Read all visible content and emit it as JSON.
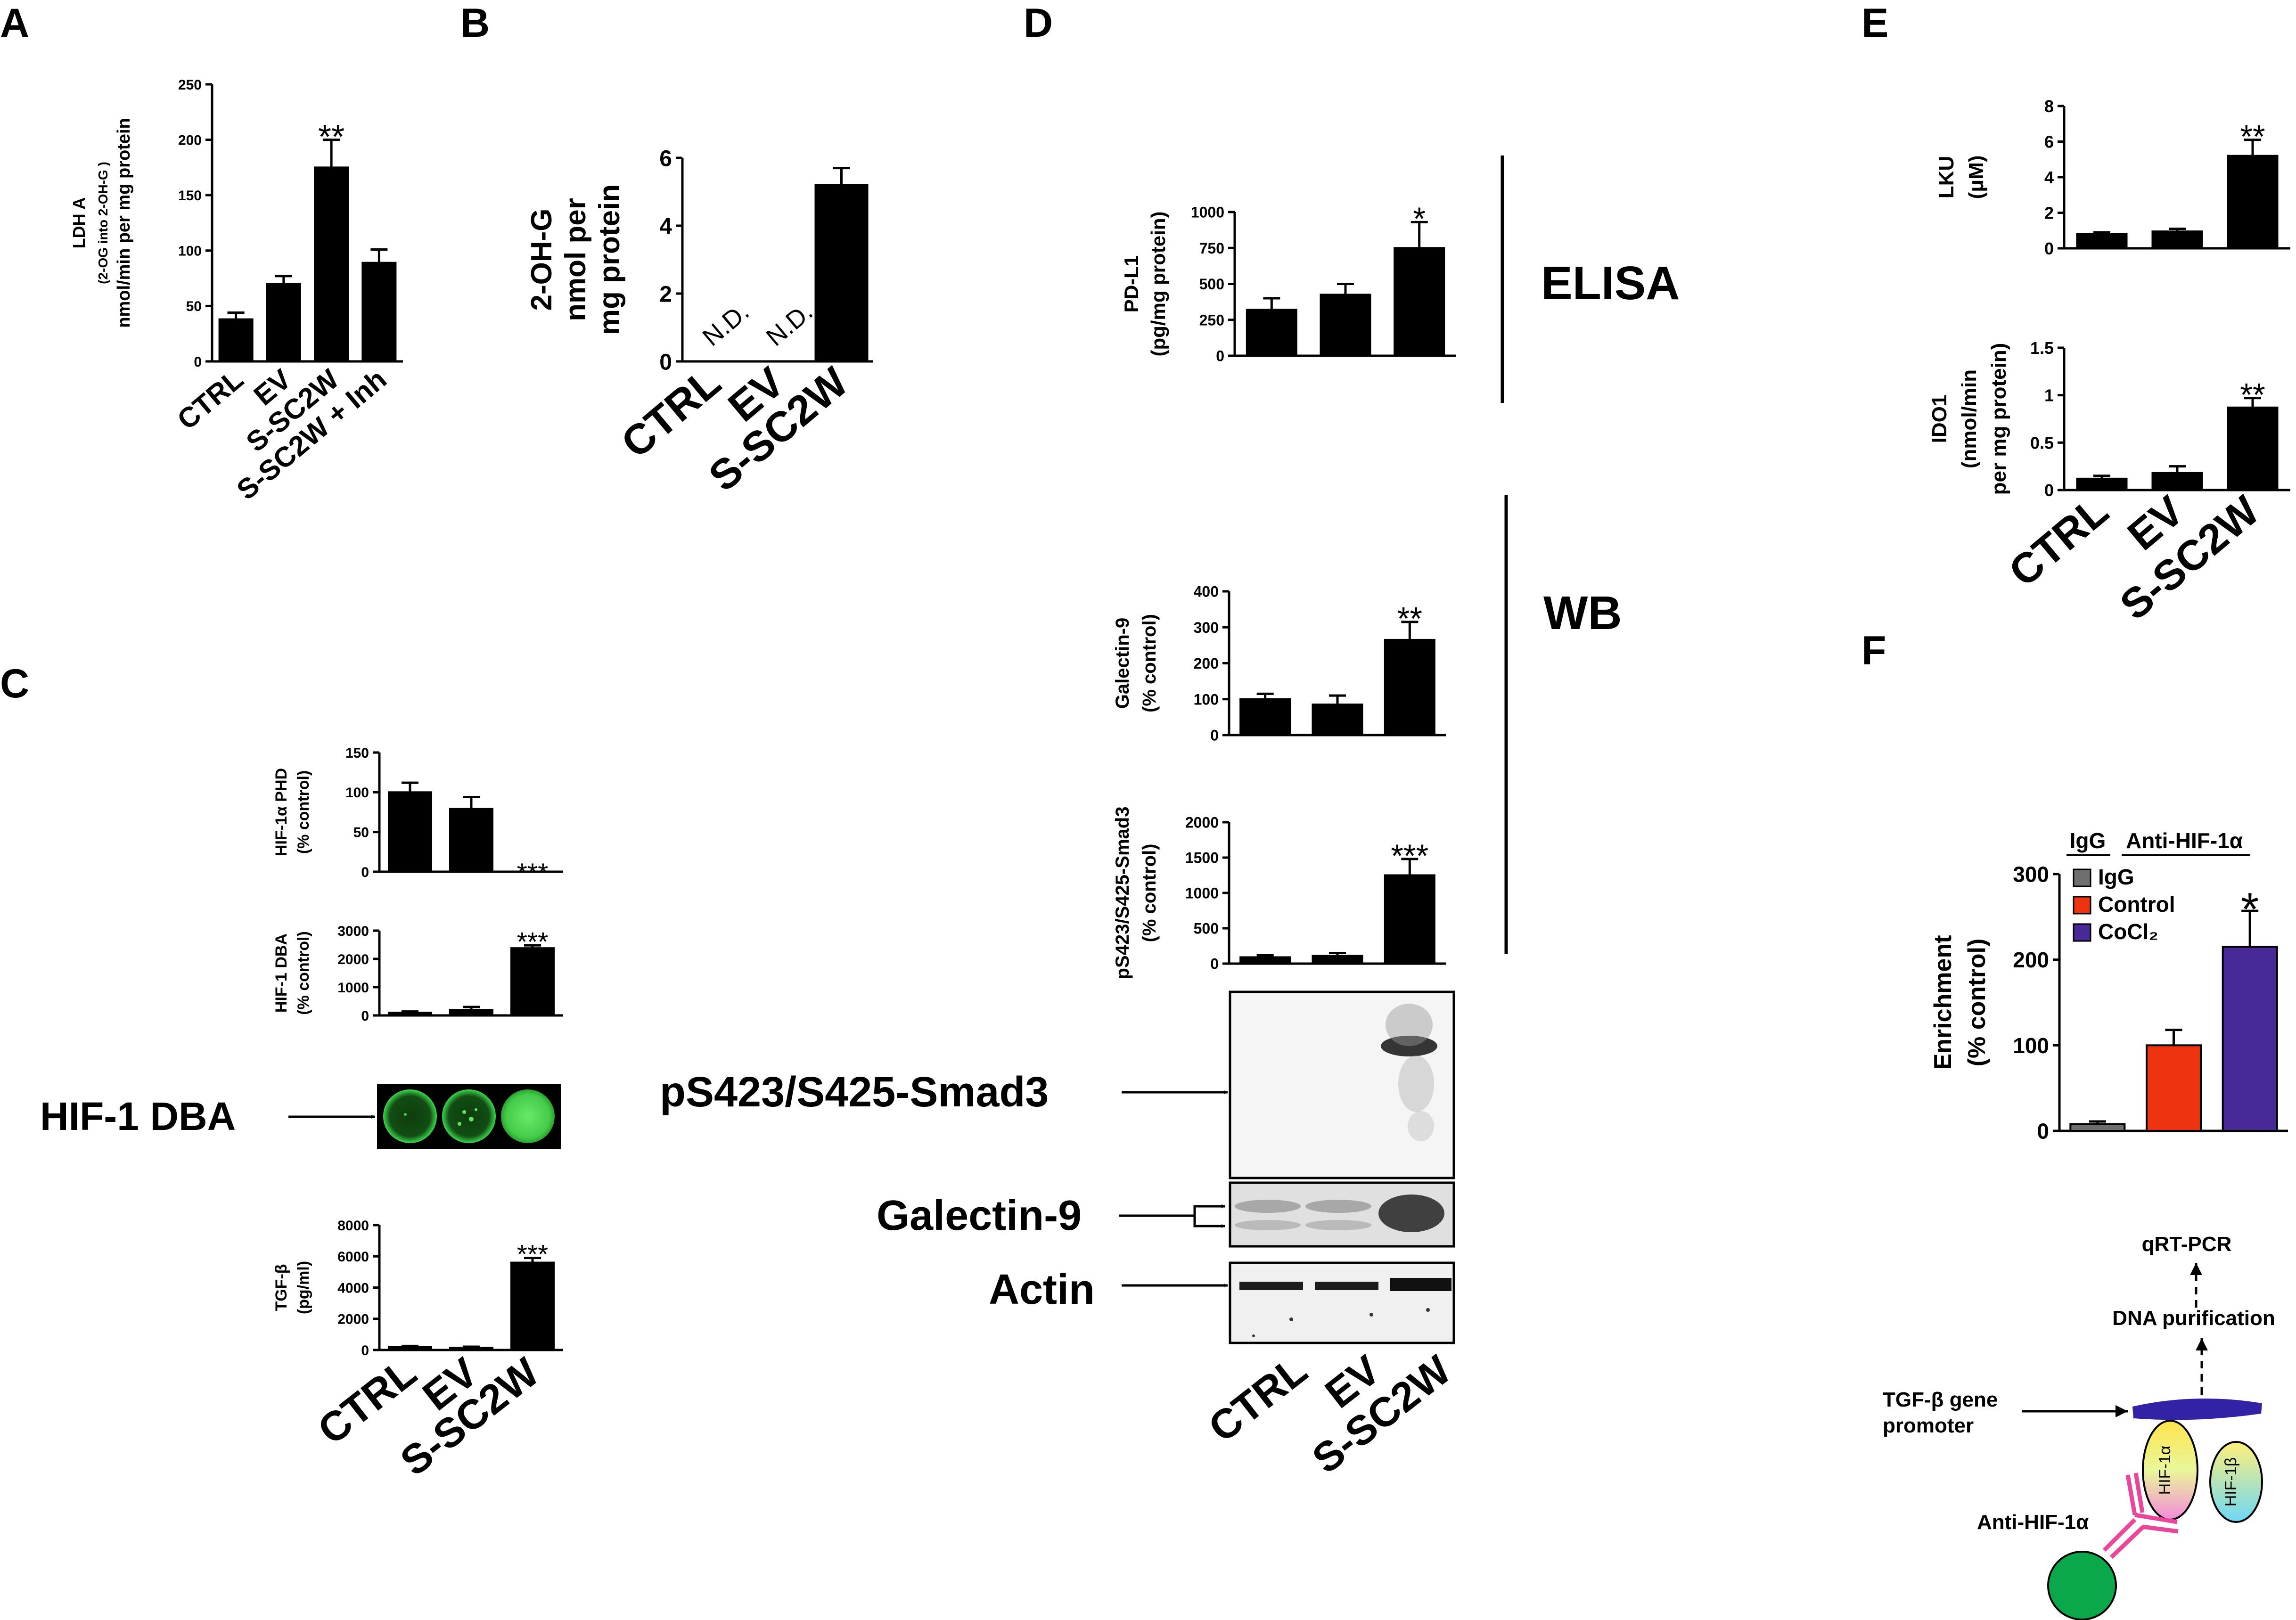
{
  "panels": {
    "A": {
      "letter": "A"
    },
    "B": {
      "letter": "B"
    },
    "C": {
      "letter": "C",
      "blot_label": "HIF-1 DBA"
    },
    "D": {
      "letter": "D",
      "elisa_label": "ELISA",
      "wb_label": "WB",
      "blot_labels": [
        "pS423/S425-Smad3",
        "Galectin-9",
        "Actin"
      ],
      "lanes": [
        "CTRL",
        "EV",
        "S-SC2W"
      ]
    },
    "E": {
      "letter": "E"
    },
    "F": {
      "letter": "F",
      "group_labels": [
        "IgG",
        "Anti-HIF-1α"
      ],
      "schematic": {
        "top": "qRT-PCR",
        "middle": "DNA purification",
        "promoter": [
          "TGF-β gene",
          "promoter"
        ],
        "subunit_a": "HIF-1α",
        "subunit_b": "HIF-1β",
        "antibody": "Anti-HIF-1α"
      }
    }
  },
  "chart_data": [
    {
      "id": "A",
      "type": "bar",
      "categories": [
        "CTRL",
        "EV",
        "S-SC2W",
        "S-SC2W + Inh"
      ],
      "values": [
        38,
        70,
        175,
        89
      ],
      "errors": [
        6,
        7,
        25,
        12
      ],
      "ylabel": [
        "LDH A",
        "(2-OG into 2-OH-G )",
        "nmol/min per mg protein"
      ],
      "ylim": [
        0,
        250
      ],
      "yticks": [
        0,
        50,
        100,
        150,
        200,
        250
      ],
      "annotations": [
        {
          "category": "S-SC2W",
          "text": "**"
        }
      ]
    },
    {
      "id": "B",
      "type": "bar",
      "categories": [
        "CTRL",
        "EV",
        "S-SC2W"
      ],
      "values": [
        0,
        0,
        5.2
      ],
      "errors": [
        0,
        0,
        0.5
      ],
      "ylabel": [
        "2-OH-G",
        "nmol per",
        "mg protein"
      ],
      "ylim": [
        0,
        6
      ],
      "yticks": [
        0,
        2,
        4,
        6
      ],
      "annotations": [
        {
          "category": "CTRL",
          "text": "N.D."
        },
        {
          "category": "EV",
          "text": "N.D."
        }
      ]
    },
    {
      "id": "C1",
      "type": "bar",
      "categories": [
        "CTRL",
        "EV",
        "S-SC2W"
      ],
      "values": [
        100,
        79,
        0
      ],
      "errors": [
        12,
        15,
        0
      ],
      "ylabel": [
        "HIF-1α PHD",
        "(% control)"
      ],
      "ylim": [
        0,
        150
      ],
      "yticks": [
        0,
        50,
        100,
        150
      ],
      "annotations": [
        {
          "category": "S-SC2W",
          "text": "***"
        }
      ]
    },
    {
      "id": "C2",
      "type": "bar",
      "categories": [
        "CTRL",
        "EV",
        "S-SC2W"
      ],
      "values": [
        100,
        200,
        2380
      ],
      "errors": [
        40,
        100,
        100
      ],
      "ylabel": [
        "HIF-1 DBA",
        "(% control)"
      ],
      "ylim": [
        0,
        3000
      ],
      "yticks": [
        0,
        1000,
        2000,
        3000
      ],
      "annotations": [
        {
          "category": "S-SC2W",
          "text": "***"
        }
      ]
    },
    {
      "id": "C3",
      "type": "bar",
      "categories": [
        "CTRL",
        "EV",
        "S-SC2W"
      ],
      "values": [
        200,
        150,
        5600
      ],
      "errors": [
        60,
        60,
        300
      ],
      "ylabel": [
        "TGF-β",
        "(pg/ml)"
      ],
      "ylim": [
        0,
        8000
      ],
      "yticks": [
        0,
        2000,
        4000,
        6000,
        8000
      ],
      "xticklabels": [
        "CTRL",
        "EV",
        "S-SC2W"
      ],
      "annotations": [
        {
          "category": "S-SC2W",
          "text": "***"
        }
      ]
    },
    {
      "id": "D1",
      "type": "bar",
      "categories": [
        "CTRL",
        "EV",
        "S-SC2W"
      ],
      "values": [
        320,
        425,
        750
      ],
      "errors": [
        80,
        75,
        180
      ],
      "ylabel": [
        "PD-L1",
        "(pg/mg protein)"
      ],
      "ylim": [
        0,
        1000
      ],
      "yticks": [
        0,
        250,
        500,
        750,
        1000
      ],
      "annotations": [
        {
          "category": "S-SC2W",
          "text": "*"
        }
      ]
    },
    {
      "id": "D2",
      "type": "bar",
      "categories": [
        "CTRL",
        "EV",
        "S-SC2W"
      ],
      "values": [
        100,
        85,
        265
      ],
      "errors": [
        15,
        25,
        50
      ],
      "ylabel": [
        "Galectin-9",
        "(% control)"
      ],
      "ylim": [
        0,
        400
      ],
      "yticks": [
        0,
        100,
        200,
        300,
        400
      ],
      "annotations": [
        {
          "category": "S-SC2W",
          "text": "**"
        }
      ]
    },
    {
      "id": "D3",
      "type": "bar",
      "categories": [
        "CTRL",
        "EV",
        "S-SC2W"
      ],
      "values": [
        90,
        110,
        1250
      ],
      "errors": [
        30,
        40,
        230
      ],
      "ylabel": [
        "pS423/S425-Smad3",
        "(% control)"
      ],
      "ylim": [
        0,
        2000
      ],
      "yticks": [
        0,
        500,
        1000,
        1500,
        2000
      ],
      "annotations": [
        {
          "category": "S-SC2W",
          "text": "***"
        }
      ]
    },
    {
      "id": "E1",
      "type": "bar",
      "categories": [
        "CTRL",
        "EV",
        "S-SC2W"
      ],
      "values": [
        0.8,
        0.95,
        5.2
      ],
      "errors": [
        0.1,
        0.15,
        0.9
      ],
      "ylabel": [
        "LKU",
        "(μM)"
      ],
      "ylim": [
        0,
        8
      ],
      "yticks": [
        0,
        2,
        4,
        6,
        8
      ],
      "annotations": [
        {
          "category": "S-SC2W",
          "text": "**"
        }
      ]
    },
    {
      "id": "E2",
      "type": "bar",
      "categories": [
        "CTRL",
        "EV",
        "S-SC2W"
      ],
      "values": [
        0.12,
        0.18,
        0.87
      ],
      "errors": [
        0.03,
        0.07,
        0.1
      ],
      "ylabel": [
        "IDO1",
        "(nmol/min",
        "per mg protein)"
      ],
      "ylim": [
        0,
        1.5
      ],
      "yticks": [
        0.0,
        0.5,
        1.0,
        1.5
      ],
      "xticklabels": [
        "CTRL",
        "EV",
        "S-SC2W"
      ],
      "annotations": [
        {
          "category": "S-SC2W",
          "text": "**"
        }
      ]
    },
    {
      "id": "F",
      "type": "bar",
      "categories": [
        "IgG",
        "Control",
        "CoCl2"
      ],
      "values": [
        8,
        100,
        215
      ],
      "errors": [
        3,
        18,
        42
      ],
      "colors": [
        "#6f6f6f",
        "#ee3311",
        "#472a96"
      ],
      "ylabel": [
        "Enrichment",
        "(% control)"
      ],
      "ylim": [
        0,
        300
      ],
      "yticks": [
        0,
        100,
        200,
        300
      ],
      "legend": {
        "placement": "top-left",
        "entries": [
          "IgG",
          "Control",
          "CoCl₂"
        ]
      },
      "annotations": [
        {
          "category": "CoCl2",
          "text": "*"
        }
      ]
    }
  ]
}
